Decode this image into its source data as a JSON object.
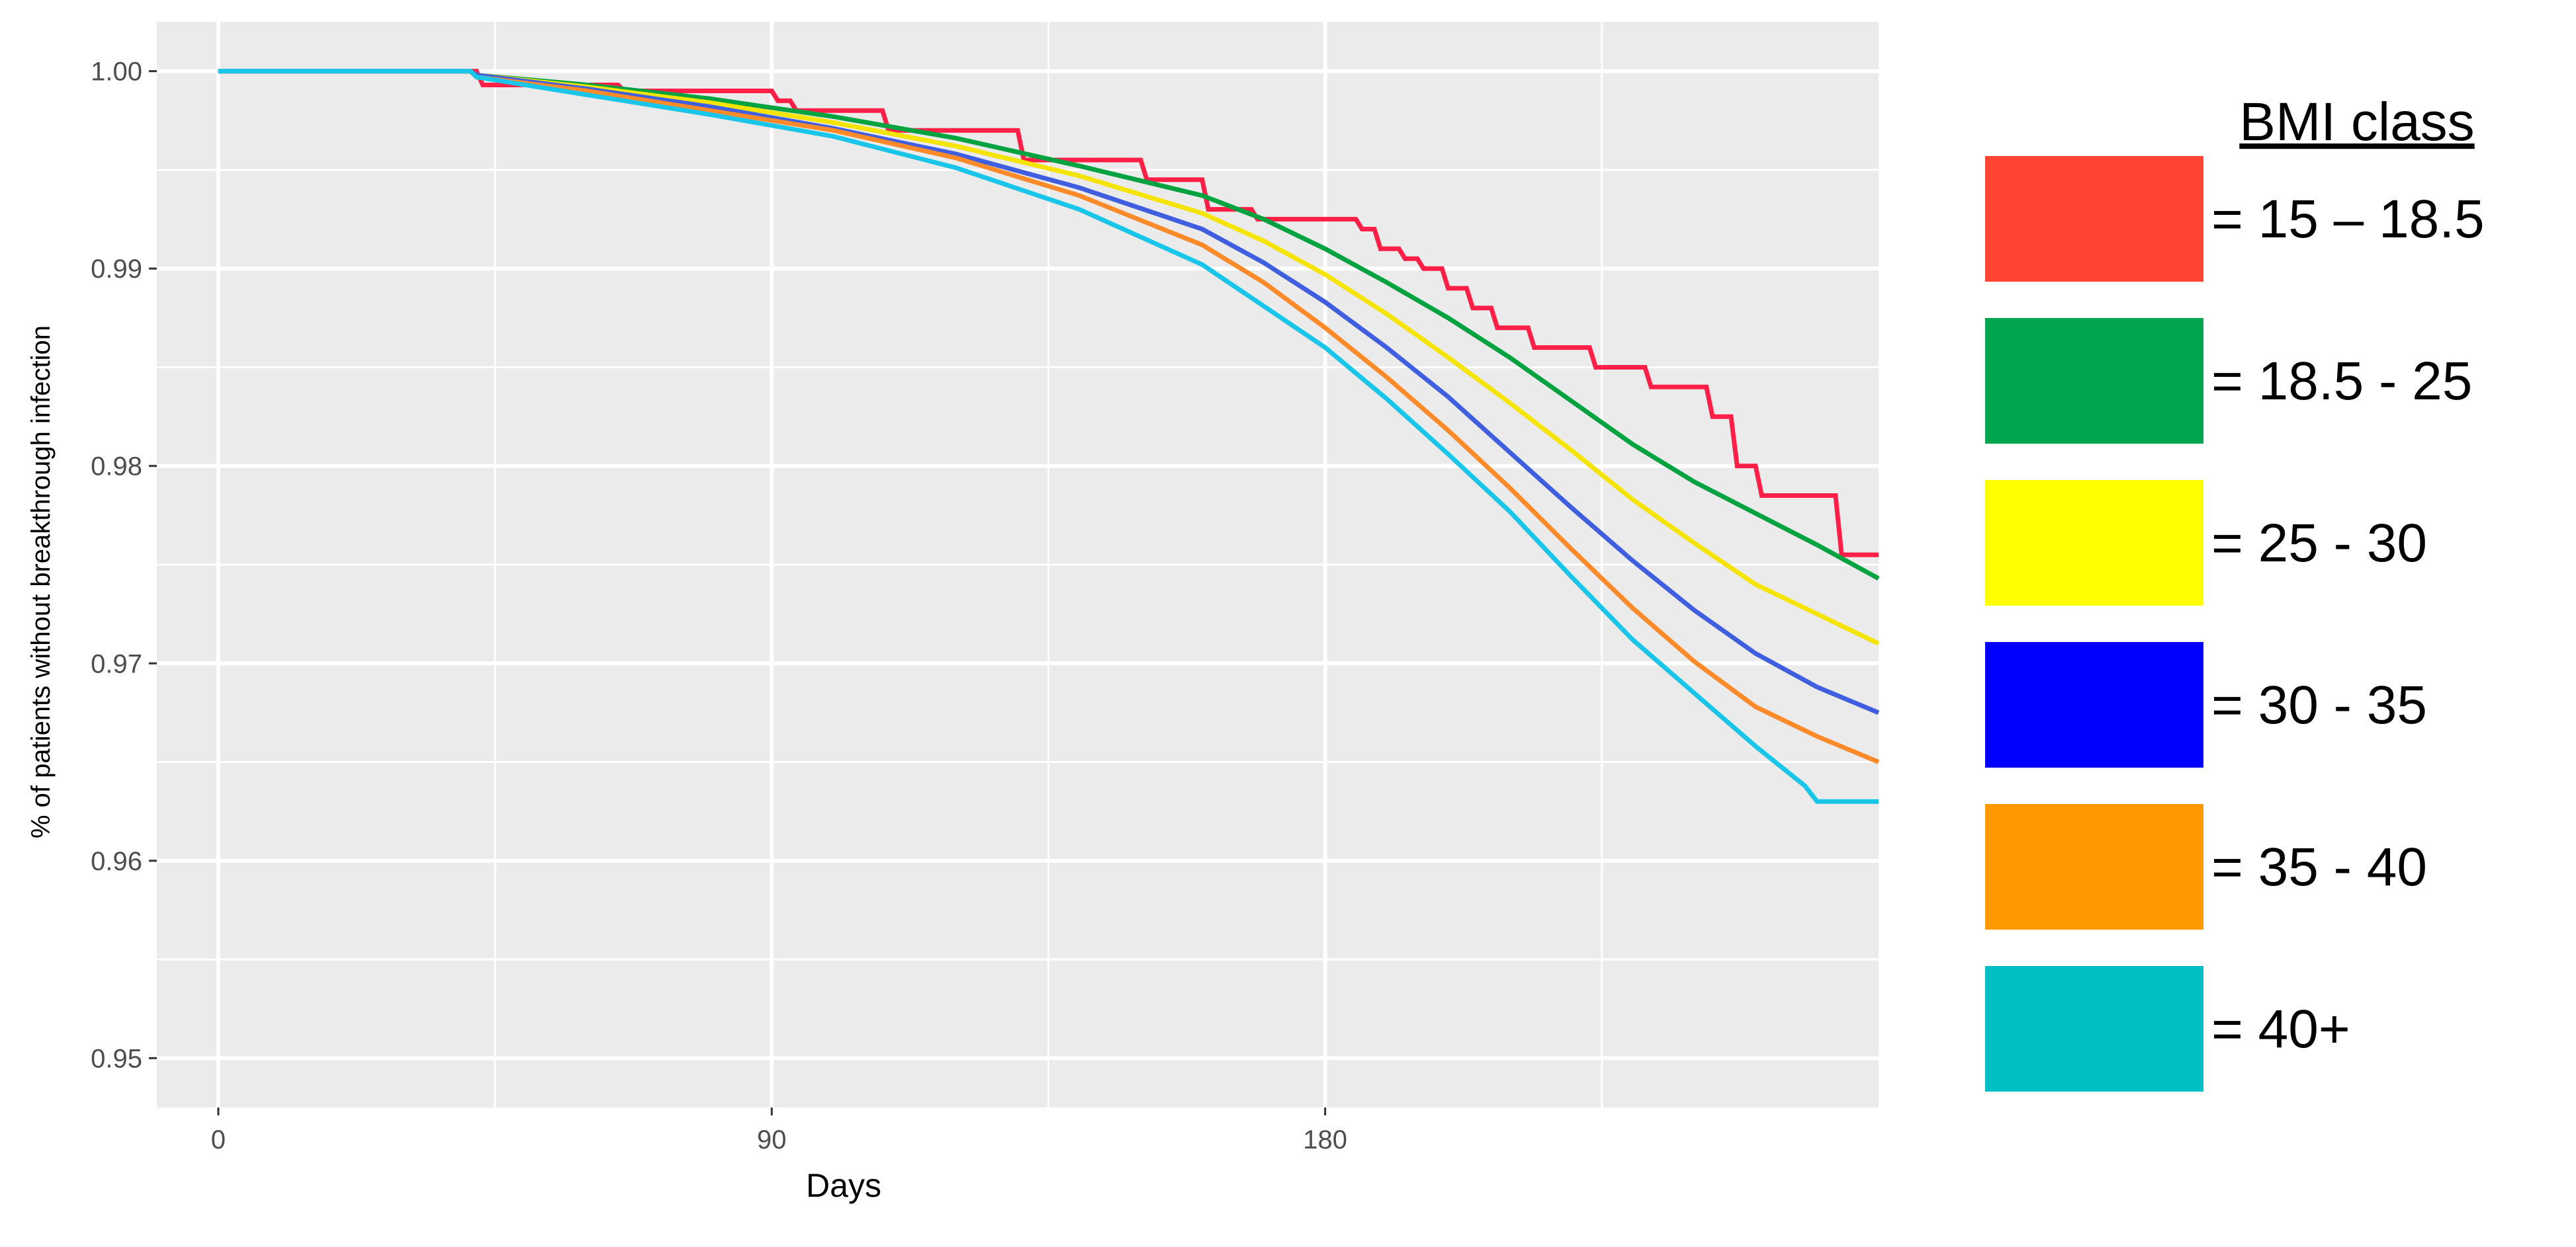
{
  "chart_data": {
    "type": "line",
    "title": "",
    "xlabel": "Days",
    "ylabel": "% of patients without breakthrough infection",
    "xlim": [
      -10,
      270
    ],
    "ylim": [
      0.9475,
      1.0025
    ],
    "x_ticks": [
      0,
      90,
      180
    ],
    "x_tick_labels": [
      "0",
      "90",
      "180"
    ],
    "y_ticks": [
      0.95,
      0.96,
      0.97,
      0.98,
      0.99,
      1.0
    ],
    "y_tick_labels": [
      "0.95",
      "0.96",
      "0.97",
      "0.98",
      "0.99",
      "1.00"
    ],
    "grid": true,
    "panel_background": "#ebebeb",
    "grid_color": "#ffffff",
    "legend": {
      "title": "BMI class",
      "position": "right"
    },
    "series": [
      {
        "name": "= 15 – 18.5",
        "color": "#ff1f47",
        "swatch_color": "#ff4433",
        "step": true,
        "x": [
          0,
          42,
          43,
          65,
          66,
          90,
          91,
          93,
          94,
          108,
          109,
          130,
          131,
          150,
          151,
          160,
          161,
          168,
          169,
          185,
          186,
          188,
          189,
          192,
          193,
          195,
          196,
          199,
          200,
          203,
          204,
          207,
          208,
          213,
          214,
          223,
          224,
          232,
          233,
          242,
          243,
          246,
          247,
          250,
          251,
          263,
          264,
          270
        ],
        "y": [
          1.0,
          1.0,
          0.9993,
          0.9993,
          0.999,
          0.999,
          0.9985,
          0.9985,
          0.998,
          0.998,
          0.997,
          0.997,
          0.9955,
          0.9955,
          0.9945,
          0.9945,
          0.993,
          0.993,
          0.9925,
          0.9925,
          0.992,
          0.992,
          0.991,
          0.991,
          0.9905,
          0.9905,
          0.99,
          0.99,
          0.989,
          0.989,
          0.988,
          0.988,
          0.987,
          0.987,
          0.986,
          0.986,
          0.985,
          0.985,
          0.984,
          0.984,
          0.9825,
          0.9825,
          0.98,
          0.98,
          0.9785,
          0.9785,
          0.9755,
          0.9755
        ]
      },
      {
        "name": "= 18.5 - 25",
        "color": "#00a33f",
        "swatch_color": "#00a550",
        "step": false,
        "x": [
          0,
          41,
          42,
          60,
          80,
          100,
          120,
          140,
          160,
          170,
          180,
          190,
          200,
          210,
          220,
          230,
          240,
          250,
          260,
          270
        ],
        "y": [
          1.0,
          1.0,
          0.9998,
          0.9993,
          0.9986,
          0.9977,
          0.9966,
          0.9952,
          0.9937,
          0.9925,
          0.991,
          0.9893,
          0.9875,
          0.9855,
          0.9833,
          0.9811,
          0.9792,
          0.9776,
          0.976,
          0.9743
        ]
      },
      {
        "name": "= 25 - 30",
        "color": "#f5e400",
        "swatch_color": "#ffff00",
        "step": false,
        "x": [
          0,
          41,
          42,
          60,
          80,
          100,
          120,
          140,
          160,
          170,
          180,
          190,
          200,
          210,
          220,
          230,
          240,
          250,
          260,
          270
        ],
        "y": [
          1.0,
          1.0,
          0.9998,
          0.9992,
          0.9984,
          0.9974,
          0.9962,
          0.9947,
          0.9928,
          0.9914,
          0.9897,
          0.9877,
          0.9855,
          0.9832,
          0.9808,
          0.9783,
          0.9761,
          0.974,
          0.9725,
          0.971
        ]
      },
      {
        "name": "= 30 - 35",
        "color": "#3f5fe0",
        "swatch_color": "#0000ff",
        "step": false,
        "x": [
          0,
          41,
          42,
          60,
          80,
          100,
          120,
          140,
          160,
          170,
          180,
          190,
          200,
          210,
          220,
          230,
          240,
          250,
          260,
          270
        ],
        "y": [
          1.0,
          1.0,
          0.9998,
          0.9991,
          0.9982,
          0.9971,
          0.9958,
          0.9941,
          0.992,
          0.9903,
          0.9883,
          0.986,
          0.9835,
          0.9807,
          0.9779,
          0.9752,
          0.9727,
          0.9705,
          0.9688,
          0.9675
        ]
      },
      {
        "name": "= 35 - 40",
        "color": "#ff8a2a",
        "swatch_color": "#ff9900",
        "step": false,
        "x": [
          0,
          41,
          42,
          60,
          80,
          100,
          120,
          140,
          160,
          170,
          180,
          190,
          200,
          210,
          220,
          230,
          240,
          250,
          260,
          270
        ],
        "y": [
          1.0,
          1.0,
          0.9997,
          0.999,
          0.998,
          0.997,
          0.9956,
          0.9937,
          0.9912,
          0.9893,
          0.987,
          0.9845,
          0.9818,
          0.9789,
          0.9758,
          0.9728,
          0.9701,
          0.9678,
          0.9663,
          0.965
        ]
      },
      {
        "name": "= 40+",
        "color": "#19c6ea",
        "swatch_color": "#00bfc4",
        "step": false,
        "x": [
          0,
          41,
          42,
          60,
          80,
          100,
          120,
          140,
          160,
          170,
          180,
          190,
          200,
          210,
          220,
          230,
          240,
          250,
          258,
          260,
          270
        ],
        "y": [
          1.0,
          1.0,
          0.9997,
          0.9988,
          0.9978,
          0.9967,
          0.9951,
          0.993,
          0.9902,
          0.9881,
          0.986,
          0.9834,
          0.9806,
          0.9777,
          0.9744,
          0.9712,
          0.9685,
          0.9658,
          0.9638,
          0.963,
          0.963
        ]
      }
    ]
  }
}
